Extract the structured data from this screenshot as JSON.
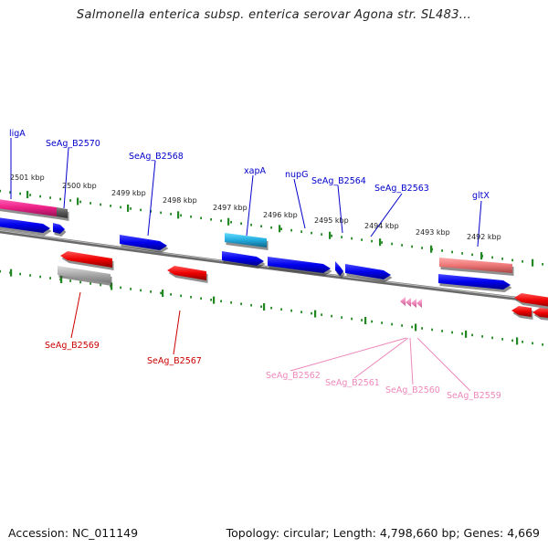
{
  "title": "Salmonella enterica subsp. enterica serovar Agona str. SL483...",
  "footer": {
    "accession": "Accession: NC_011149",
    "topology": "Topology: circular; Length: 4,798,660 bp; Genes: 4,669"
  },
  "colors": {
    "forward_gene": "#0000ee",
    "reverse_gene": "#ee0000",
    "highlight_magenta": "#ee2288",
    "highlight_cyan": "#22aadd",
    "highlight_salmon": "#ee7777",
    "gray_gene": "#aaaaaa",
    "pink_gene": "#ee88bb",
    "tick": "#228822",
    "backbone": "#888888"
  },
  "scale_labels": [
    "2501 kbp",
    "2500 kbp",
    "2499 kbp",
    "2498 kbp",
    "2497 kbp",
    "2496 kbp",
    "2495 kbp",
    "2494 kbp",
    "2493 kbp",
    "2492 kbp"
  ],
  "forward_labels": [
    "ligA",
    "SeAg_B2570",
    "SeAg_B2568",
    "xapA",
    "nupG",
    "SeAg_B2564",
    "SeAg_B2563",
    "gltX"
  ],
  "reverse_labels": [
    "SeAg_B2569",
    "SeAg_B2567"
  ],
  "pink_labels": [
    "SeAg_B2562",
    "SeAg_B2561",
    "SeAg_B2560",
    "SeAg_B2559"
  ]
}
